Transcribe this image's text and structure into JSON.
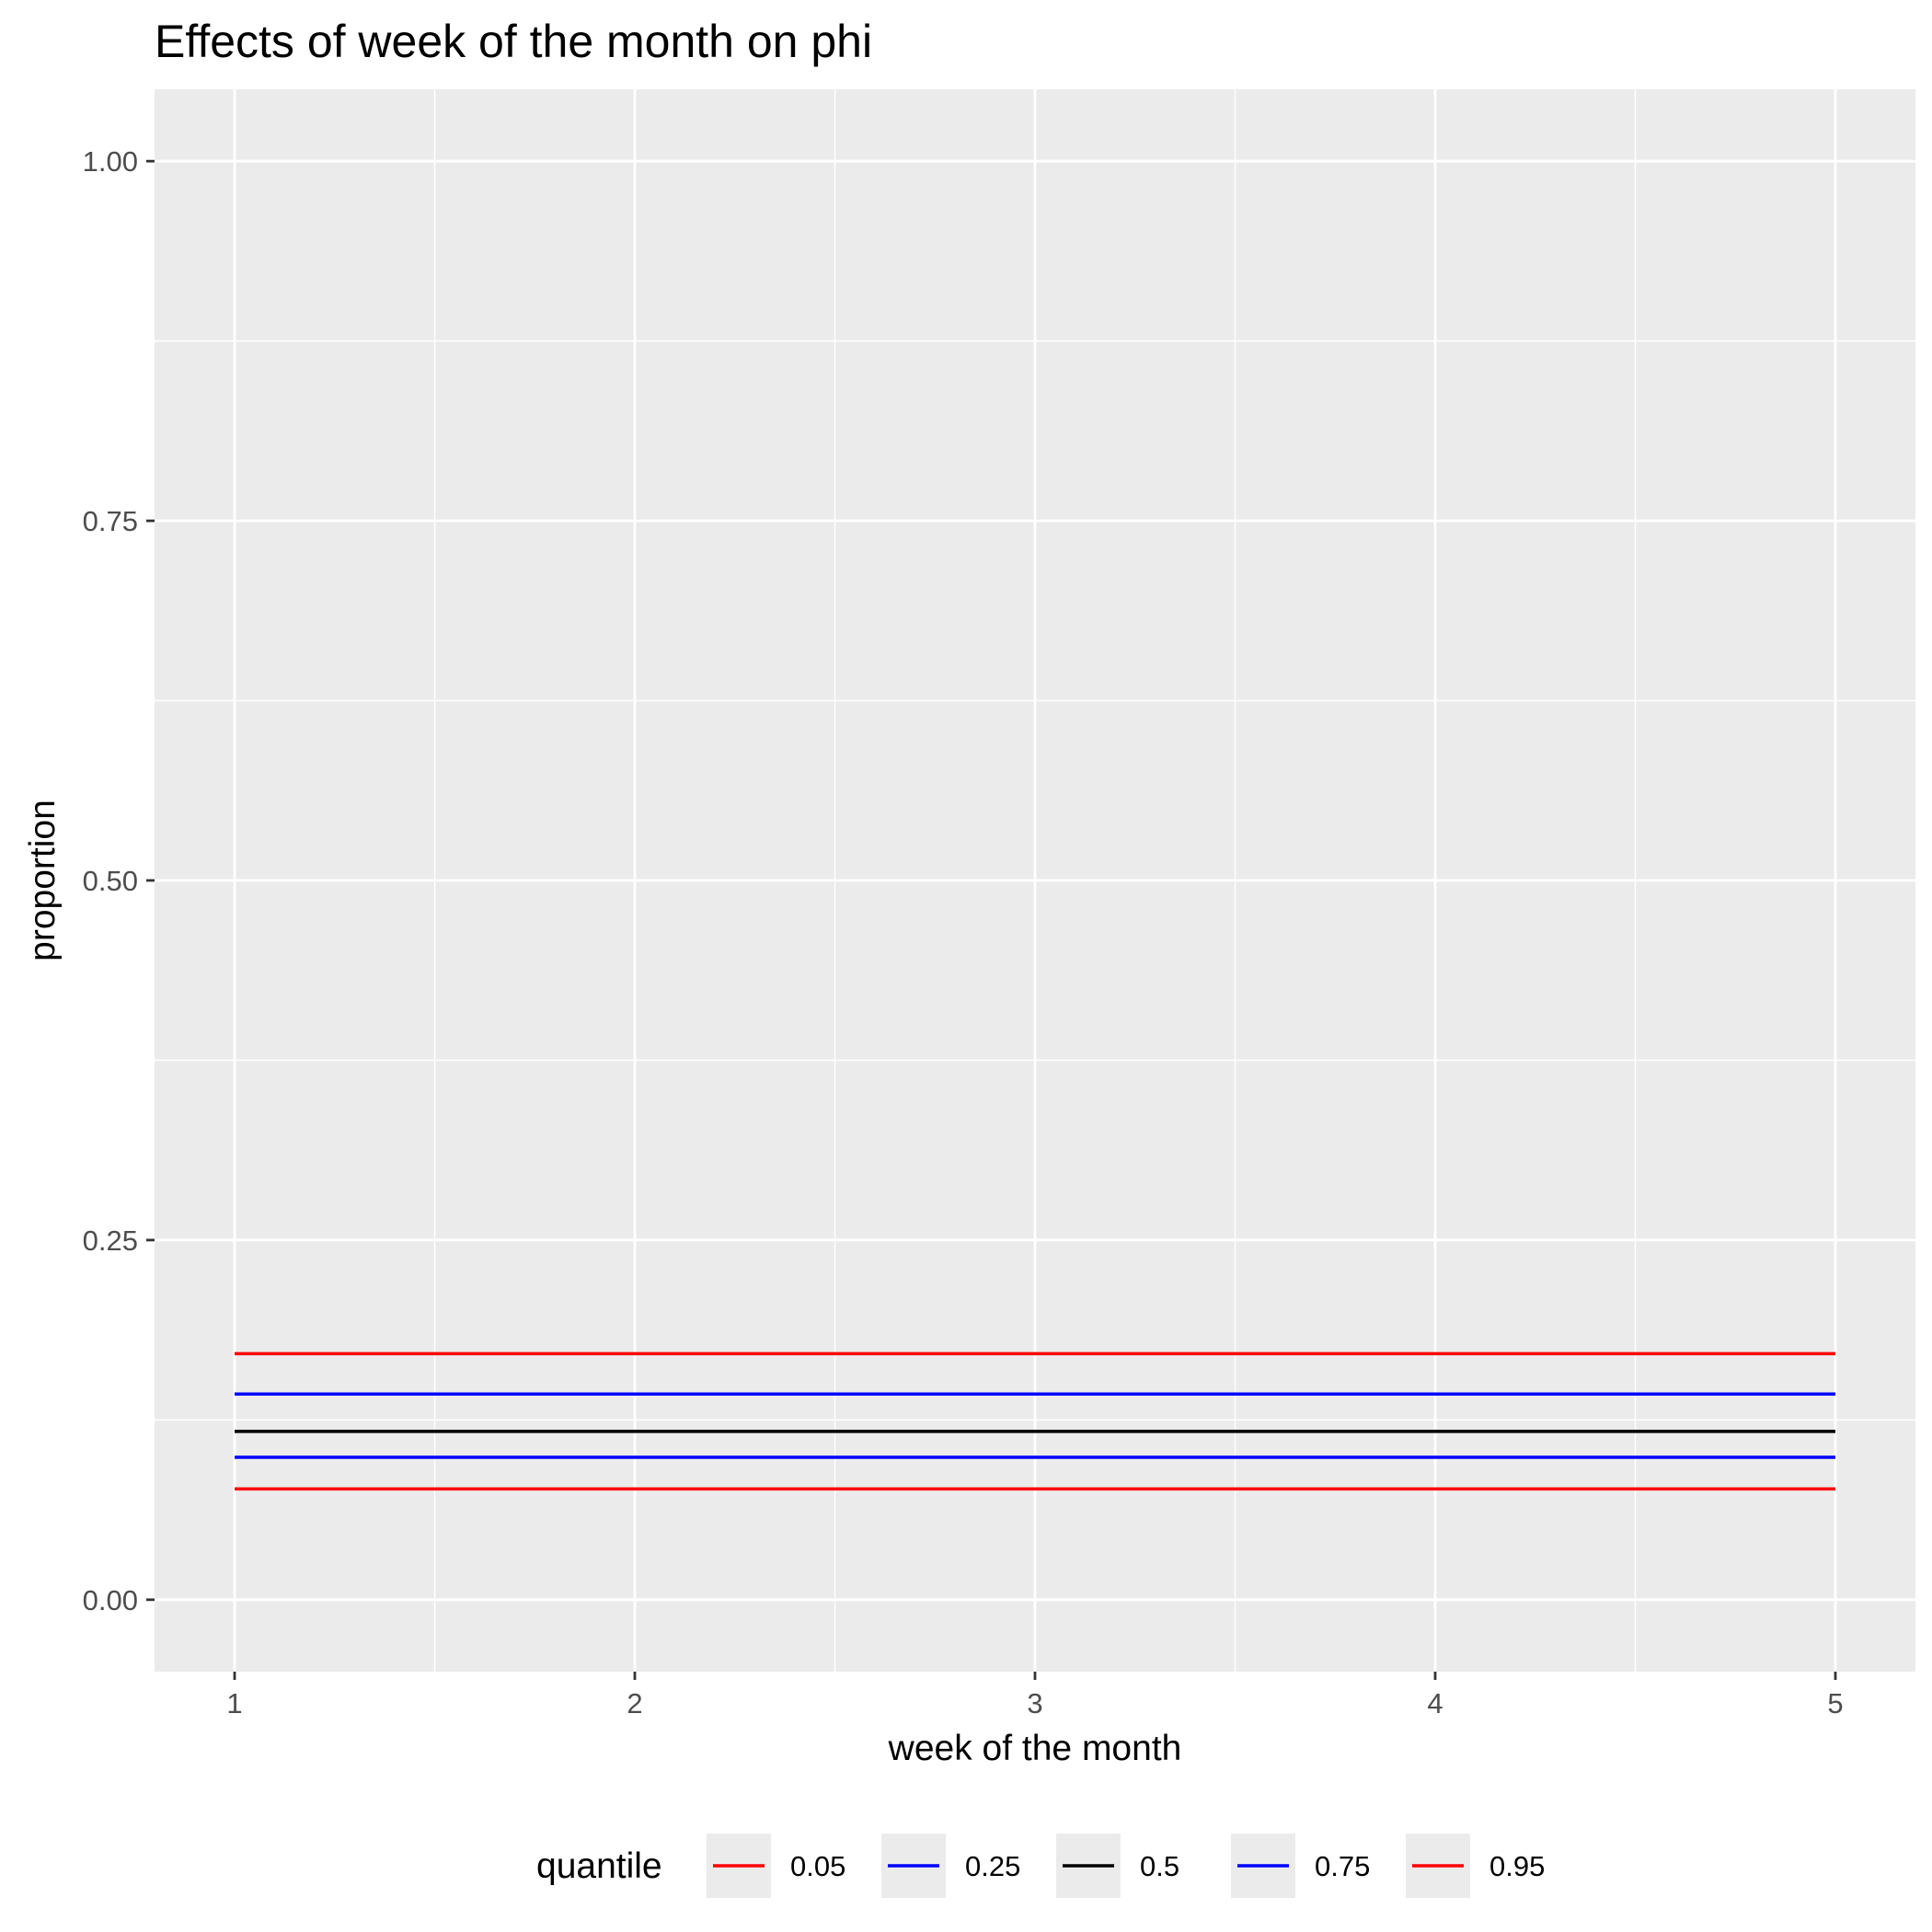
{
  "chart_data": {
    "type": "line",
    "title": "Effects of week of the month on phi",
    "xlabel": "week of the month",
    "ylabel": "proportion",
    "x": [
      1,
      2,
      3,
      4,
      5
    ],
    "xlim": [
      0.8,
      5.2
    ],
    "ylim": [
      -0.05,
      1.05
    ],
    "x_ticks": [
      1,
      2,
      3,
      4,
      5
    ],
    "x_tick_labels": [
      "1",
      "2",
      "3",
      "4",
      "5"
    ],
    "y_ticks": [
      0.0,
      0.25,
      0.5,
      0.75,
      1.0
    ],
    "y_tick_labels": [
      "0.00",
      "0.25",
      "0.50",
      "0.75",
      "1.00"
    ],
    "grid": true,
    "legend": {
      "title": "quantile",
      "position": "bottom"
    },
    "series": [
      {
        "name": "0.05",
        "color": "#ff0000",
        "values": [
          0.077,
          0.077,
          0.077,
          0.077,
          0.077
        ]
      },
      {
        "name": "0.25",
        "color": "#0000ff",
        "values": [
          0.099,
          0.099,
          0.099,
          0.099,
          0.099
        ]
      },
      {
        "name": "0.5",
        "color": "#000000",
        "values": [
          0.117,
          0.117,
          0.117,
          0.117,
          0.117
        ]
      },
      {
        "name": "0.75",
        "color": "#0000ff",
        "values": [
          0.143,
          0.143,
          0.143,
          0.143,
          0.143
        ]
      },
      {
        "name": "0.95",
        "color": "#ff0000",
        "values": [
          0.171,
          0.171,
          0.171,
          0.171,
          0.171
        ]
      }
    ]
  }
}
